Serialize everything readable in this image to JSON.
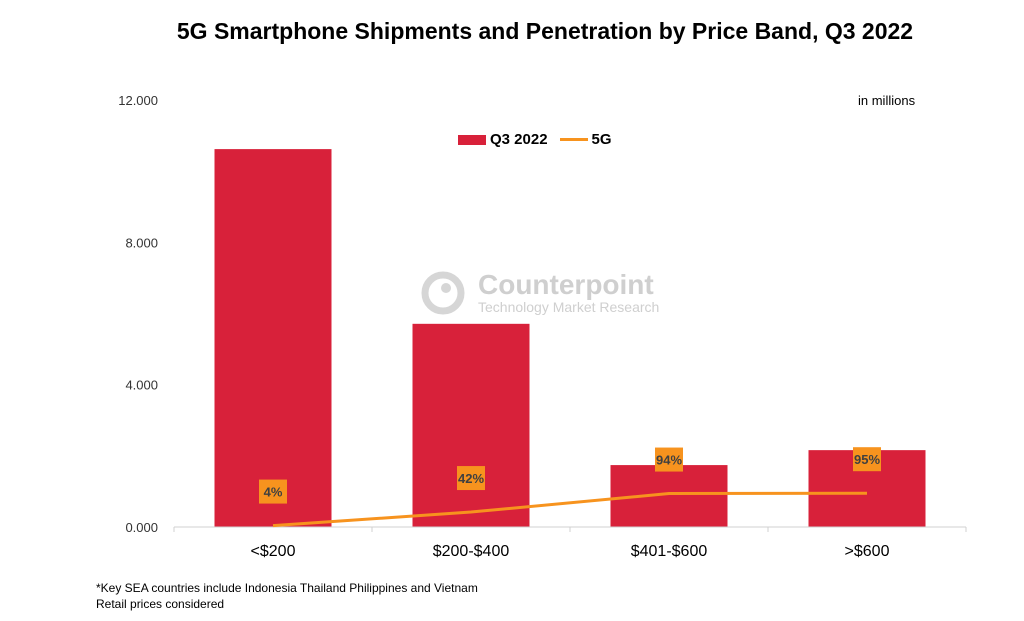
{
  "chart_data": {
    "type": "bar",
    "title": "5G Smartphone Shipments and Penetration by Price Band, Q3 2022",
    "unit_note": "in millions",
    "categories": [
      "<$200",
      "$200-$400",
      "$401-$600",
      ">$600"
    ],
    "series": [
      {
        "name": "Q3 2022",
        "type": "bar",
        "color": "#d8213a",
        "values": [
          10.62,
          5.71,
          1.74,
          2.16
        ]
      },
      {
        "name": "5G",
        "type": "line",
        "color": "#f7931e",
        "values": [
          0.04,
          0.42,
          0.94,
          0.95
        ],
        "labels": [
          "4%",
          "42%",
          "94%",
          "95%"
        ]
      }
    ],
    "ylim": [
      0,
      12
    ],
    "yticks": [
      "0.000",
      "4.000",
      "8.000",
      "12.000"
    ],
    "ytick_values": [
      0,
      4,
      8,
      12
    ],
    "grid": false,
    "legend": "top-center"
  },
  "watermark": {
    "brand": "Counterpoint",
    "tagline": "Technology Market Research"
  },
  "footnotes": [
    "*Key SEA countries include Indonesia Thailand Philippines and Vietnam",
    "Retail prices considered"
  ]
}
